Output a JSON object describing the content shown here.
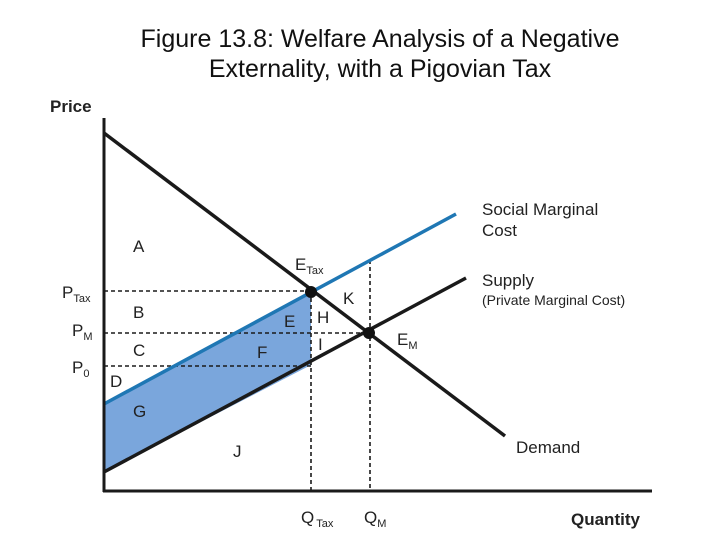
{
  "title": {
    "line1": "Figure 13.8: Welfare Analysis of a Negative",
    "line2": "Externality, with a Pigovian Tax"
  },
  "axes": {
    "y_label": "Price",
    "x_label": "Quantity"
  },
  "curves": {
    "smc_line1": "Social Marginal",
    "smc_line2": "Cost",
    "supply_line1": "Supply",
    "supply_line2": "(Private Marginal Cost)",
    "demand": "Demand"
  },
  "prices": {
    "p_tax_main": "P",
    "p_tax_sub": "Tax",
    "p_m_main": "P",
    "p_m_sub": "M",
    "p_0_main": "P",
    "p_0_sub": "0"
  },
  "quantities": {
    "q_tax_main": "Q",
    "q_tax_sub": "Tax",
    "q_m_main": "Q",
    "q_m_sub": "M"
  },
  "points": {
    "e_tax_main": "E",
    "e_tax_sub": "Tax",
    "e_m_main": "E",
    "e_m_sub": "M"
  },
  "regions": {
    "a": "A",
    "b": "B",
    "c": "C",
    "d": "D",
    "e": "E",
    "f": "F",
    "g": "G",
    "h": "H",
    "i": "I",
    "j": "J",
    "k": "K"
  },
  "colors": {
    "social_marginal_cost": "#1f77b4",
    "shaded_region": "#7aa6dc",
    "lines": "#1a1a1a"
  }
}
